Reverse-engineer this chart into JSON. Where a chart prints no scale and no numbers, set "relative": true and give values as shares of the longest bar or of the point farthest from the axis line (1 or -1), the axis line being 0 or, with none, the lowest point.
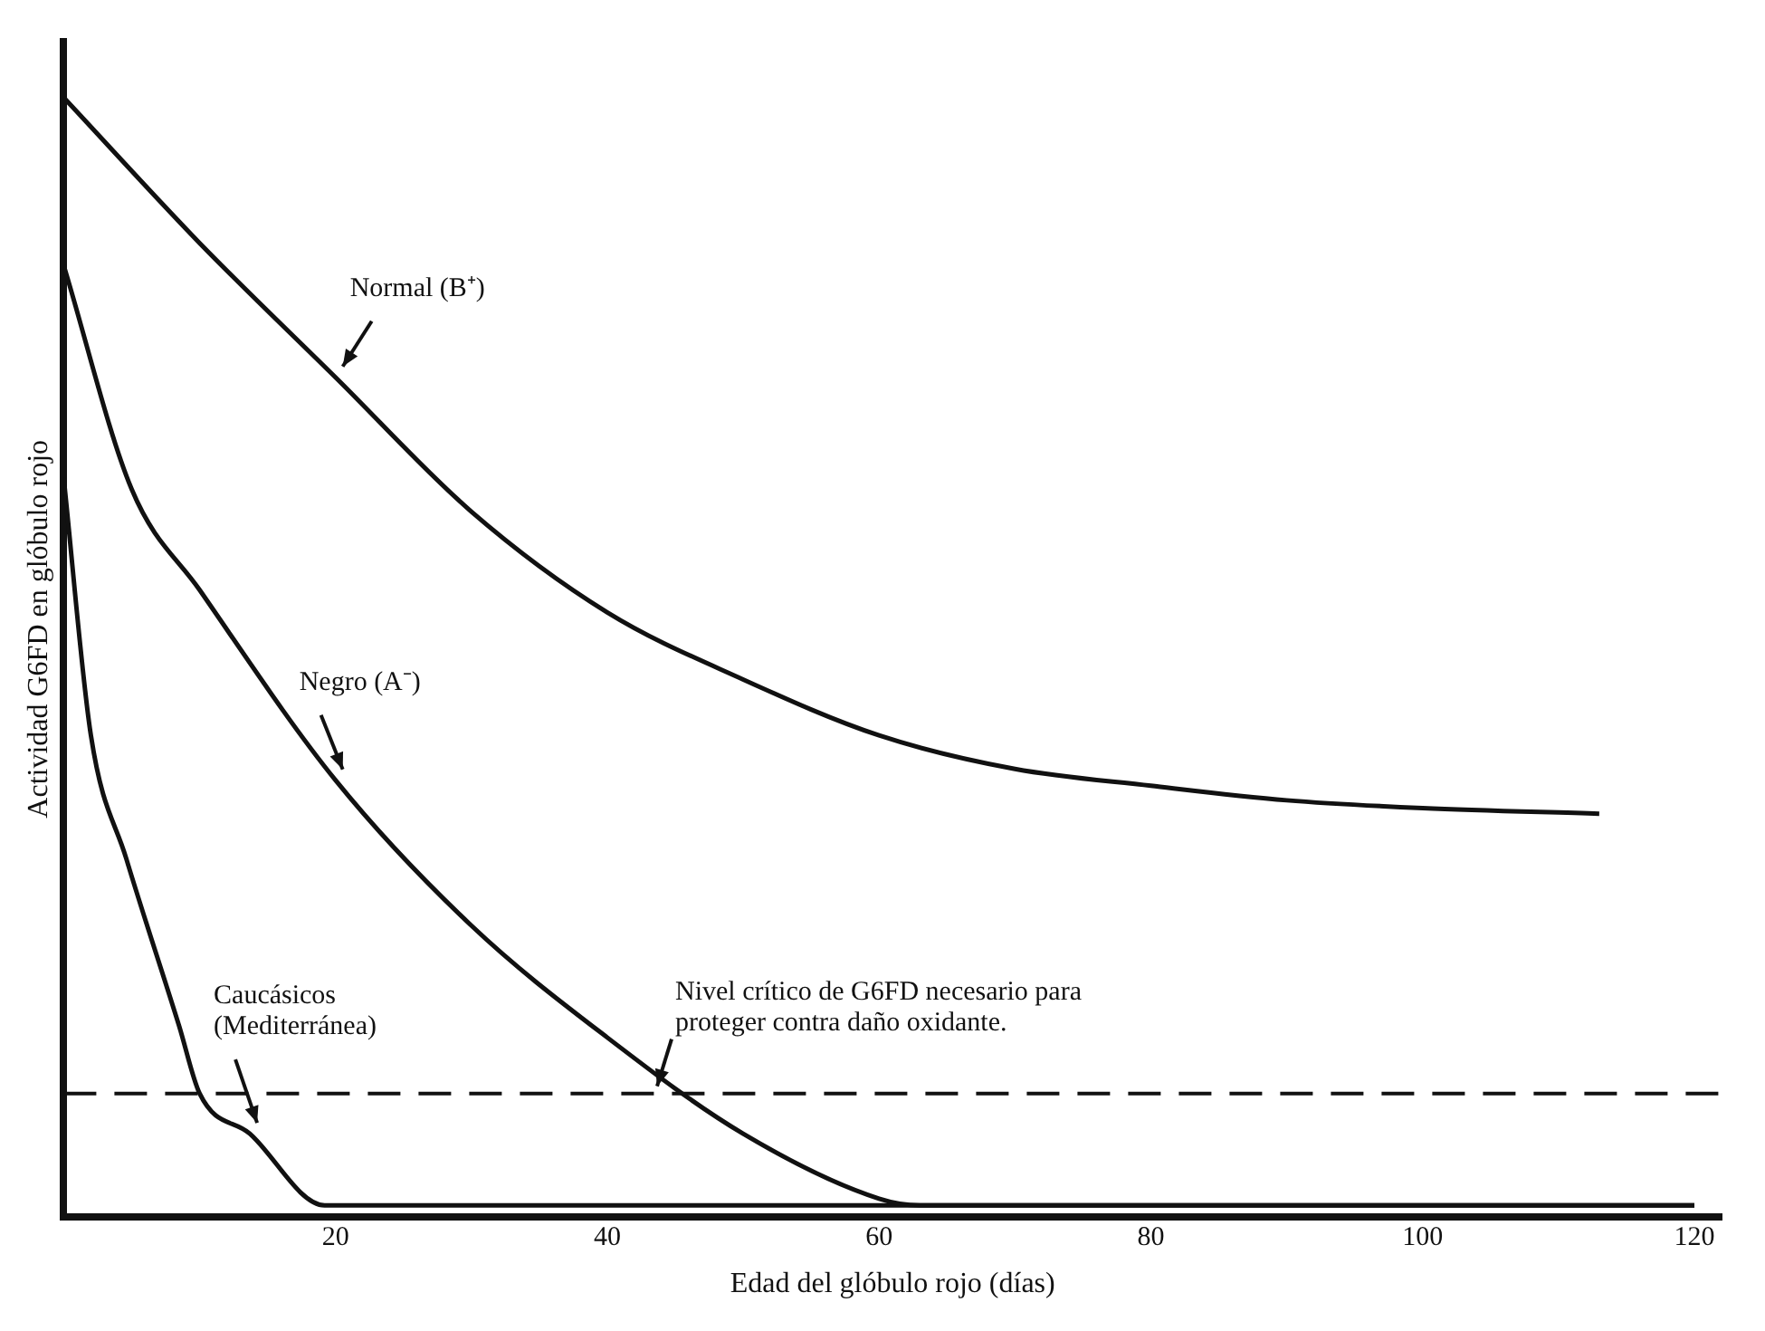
{
  "chart_data": {
    "type": "line",
    "relative": true,
    "xlabel": "Edad del glóbulo rojo (días)",
    "ylabel": "Actividad G6FD en glóbulo rojo",
    "xlim": [
      0,
      122
    ],
    "xticks": [
      20,
      40,
      60,
      80,
      100,
      120
    ],
    "legend": false,
    "grid": false,
    "marker": "none",
    "line_style": "solid",
    "series": [
      {
        "name": "Normal (B⁺)",
        "color": "#111111",
        "x": [
          0,
          10,
          20,
          30,
          40,
          50,
          60,
          70,
          80,
          90,
          100,
          113
        ],
        "values": [
          1.0,
          0.87,
          0.75,
          0.63,
          0.54,
          0.48,
          0.43,
          0.4,
          0.385,
          0.372,
          0.365,
          0.36
        ]
      },
      {
        "name": "Negro (A⁻)",
        "color": "#111111",
        "x": [
          0,
          5,
          10,
          20,
          30,
          40,
          50,
          60,
          63,
          120
        ],
        "values": [
          0.85,
          0.65,
          0.56,
          0.39,
          0.26,
          0.16,
          0.074,
          0.016,
          0.01,
          0.01
        ]
      },
      {
        "name": "Caucásicos (Mediterránea)",
        "color": "#111111",
        "x": [
          0,
          2,
          4.6,
          8.5,
          10,
          13.7,
          19.2,
          20,
          120
        ],
        "values": [
          0.66,
          0.43,
          0.32,
          0.17,
          0.11,
          0.074,
          0.01,
          0.01,
          0.01
        ]
      }
    ],
    "ref_lines": [
      {
        "axis": "y",
        "value": 0.11,
        "label": "Nivel crítico de G6FD necesario para proteger contra daño oxidante.",
        "color": "#111111",
        "line_style": "dashed"
      }
    ]
  }
}
